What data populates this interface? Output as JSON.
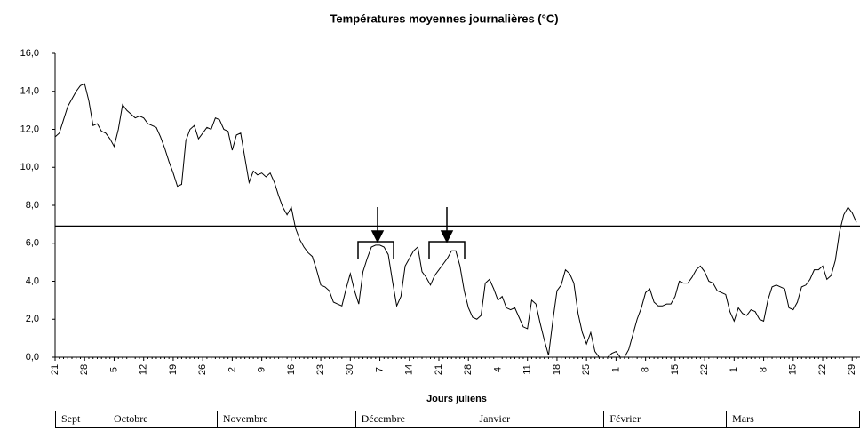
{
  "chart_data": {
    "type": "line",
    "title": "Températures moyennes journalières (°C)",
    "x_label": "Jours juliens",
    "categories": [
      "21",
      null,
      null,
      null,
      null,
      null,
      null,
      "28",
      null,
      null,
      null,
      null,
      null,
      null,
      "5",
      null,
      null,
      null,
      null,
      null,
      null,
      "12",
      null,
      null,
      null,
      null,
      null,
      null,
      "19",
      null,
      null,
      null,
      null,
      null,
      null,
      "26",
      null,
      null,
      null,
      null,
      null,
      null,
      "2",
      null,
      null,
      null,
      null,
      null,
      null,
      "9",
      null,
      null,
      null,
      null,
      null,
      null,
      "16",
      null,
      null,
      null,
      null,
      null,
      null,
      "23",
      null,
      null,
      null,
      null,
      null,
      null,
      "30",
      null,
      null,
      null,
      null,
      null,
      null,
      "7",
      null,
      null,
      null,
      null,
      null,
      null,
      "14",
      null,
      null,
      null,
      null,
      null,
      null,
      "21",
      null,
      null,
      null,
      null,
      null,
      null,
      "28",
      null,
      null,
      null,
      null,
      null,
      null,
      "4",
      null,
      null,
      null,
      null,
      null,
      null,
      "11",
      null,
      null,
      null,
      null,
      null,
      null,
      "18",
      null,
      null,
      null,
      null,
      null,
      null,
      "25",
      null,
      null,
      null,
      null,
      null,
      null,
      "1",
      null,
      null,
      null,
      null,
      null,
      null,
      "8",
      null,
      null,
      null,
      null,
      null,
      null,
      "15",
      null,
      null,
      null,
      null,
      null,
      null,
      "22",
      null,
      null,
      null,
      null,
      null,
      null,
      "1",
      null,
      null,
      null,
      null,
      null,
      null,
      "8",
      null,
      null,
      null,
      null,
      null,
      null,
      "15",
      null,
      null,
      null,
      null,
      null,
      null,
      "22",
      null,
      null,
      null,
      null,
      null,
      null,
      "29",
      null
    ],
    "values": [
      11.6,
      11.8,
      12.5,
      13.2,
      13.6,
      14.0,
      14.3,
      14.4,
      13.5,
      12.2,
      12.3,
      11.9,
      11.8,
      11.5,
      11.1,
      12.0,
      13.3,
      13.0,
      12.8,
      12.6,
      12.7,
      12.6,
      12.3,
      12.2,
      12.1,
      11.6,
      11.0,
      10.3,
      9.7,
      9.0,
      9.1,
      11.4,
      12.0,
      12.2,
      11.5,
      11.8,
      12.1,
      12.0,
      12.6,
      12.5,
      12.0,
      11.9,
      10.9,
      11.7,
      11.8,
      10.5,
      9.2,
      9.8,
      9.6,
      9.7,
      9.5,
      9.7,
      9.2,
      8.5,
      7.9,
      7.5,
      7.9,
      6.8,
      6.2,
      5.8,
      5.5,
      5.3,
      4.6,
      3.8,
      3.7,
      3.5,
      2.9,
      2.8,
      2.7,
      3.6,
      4.4,
      3.5,
      2.8,
      4.5,
      5.2,
      5.8,
      5.9,
      5.9,
      5.8,
      5.4,
      4.0,
      2.7,
      3.2,
      4.8,
      5.2,
      5.6,
      5.8,
      4.5,
      4.2,
      3.8,
      4.3,
      4.6,
      4.9,
      5.2,
      5.6,
      5.6,
      4.8,
      3.5,
      2.6,
      2.1,
      2.0,
      2.2,
      3.9,
      4.1,
      3.6,
      3.0,
      3.2,
      2.6,
      2.5,
      2.6,
      2.1,
      1.6,
      1.5,
      3.0,
      2.8,
      1.8,
      0.9,
      0.1,
      1.9,
      3.5,
      3.8,
      4.6,
      4.4,
      3.9,
      2.3,
      1.3,
      0.7,
      1.3,
      0.3,
      0.0,
      0.0,
      0.0,
      0.2,
      0.3,
      0.0,
      0.0,
      0.4,
      1.2,
      2.0,
      2.6,
      3.4,
      3.6,
      2.9,
      2.7,
      2.7,
      2.8,
      2.8,
      3.2,
      4.0,
      3.9,
      3.9,
      4.2,
      4.6,
      4.8,
      4.5,
      4.0,
      3.9,
      3.5,
      3.4,
      3.3,
      2.4,
      1.9,
      2.6,
      2.3,
      2.2,
      2.5,
      2.4,
      2.0,
      1.9,
      3.0,
      3.7,
      3.8,
      3.7,
      3.6,
      2.6,
      2.5,
      2.9,
      3.7,
      3.8,
      4.1,
      4.6,
      4.6,
      4.8,
      4.1,
      4.3,
      5.1,
      6.6,
      7.5,
      7.9,
      7.6,
      7.1
    ],
    "color": "#000000",
    "threshold": 6.9,
    "ylim": [
      0,
      16
    ],
    "yticks": [
      {
        "value": 0,
        "label": "0,0"
      },
      {
        "value": 2,
        "label": "2,0"
      },
      {
        "value": 4,
        "label": "4,0"
      },
      {
        "value": 6,
        "label": "6,0"
      },
      {
        "value": 8,
        "label": "8,0"
      },
      {
        "value": 10,
        "label": "10,0"
      },
      {
        "value": 12,
        "label": "12,0"
      },
      {
        "value": 14,
        "label": "14,0"
      },
      {
        "value": 16,
        "label": "16,0"
      }
    ],
    "months": [
      "Sept",
      "Octobre",
      "Novembre",
      "Décembre",
      "Janvier",
      "Février",
      "Mars"
    ]
  }
}
